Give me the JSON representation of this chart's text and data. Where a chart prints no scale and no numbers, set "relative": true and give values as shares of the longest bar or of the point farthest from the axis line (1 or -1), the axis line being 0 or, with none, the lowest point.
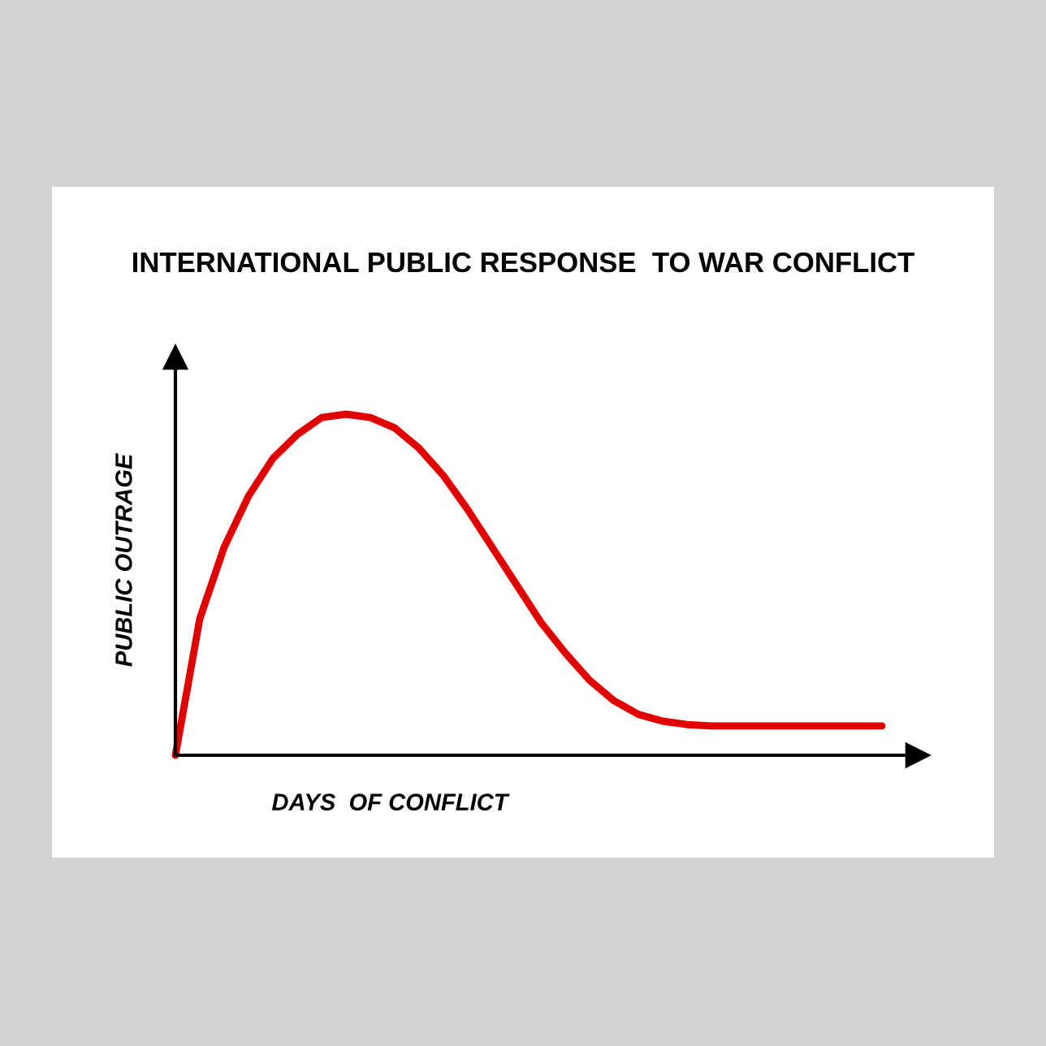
{
  "chart_data": {
    "type": "line",
    "title": "INTERNATIONAL PUBLIC RESPONSE  TO WAR CONFLICT",
    "xlabel": "DAYS  OF CONFLICT",
    "ylabel": "PUBLIC OUTRAGE",
    "relative": true,
    "categories": [
      null,
      null,
      null,
      null,
      null,
      null,
      null,
      null,
      null,
      null,
      null,
      null,
      null,
      null,
      null,
      null,
      null,
      null,
      null,
      null,
      null,
      null,
      null,
      null,
      null,
      null,
      null,
      null,
      null,
      null
    ],
    "series": [
      {
        "color": "#e00000",
        "values": [
          0,
          0.4,
          0.61,
          0.76,
          0.87,
          0.94,
          0.99,
          1.0,
          0.99,
          0.96,
          0.9,
          0.82,
          0.72,
          0.61,
          0.5,
          0.39,
          0.3,
          0.22,
          0.16,
          0.12,
          0.1,
          0.09,
          0.086,
          0.086,
          0.086,
          0.086,
          0.086,
          0.086,
          0.086,
          0.086
        ]
      }
    ]
  }
}
